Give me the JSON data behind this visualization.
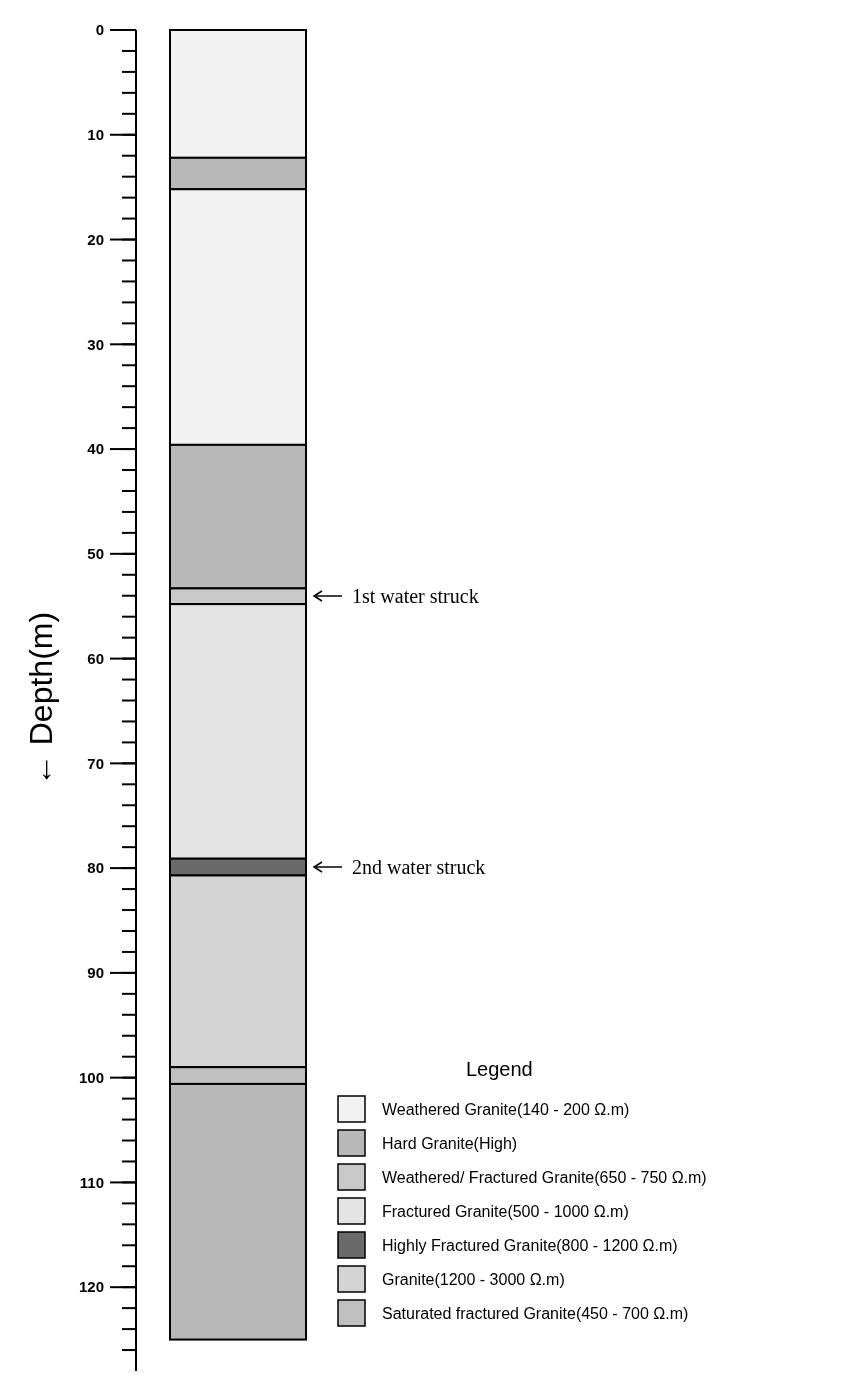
{
  "chart_data": {
    "type": "bar",
    "stacked": true,
    "categories": [
      null
    ],
    "ylabel": "← Depth(m)",
    "ylim": [
      128,
      0
    ],
    "yticks": [
      0,
      10,
      20,
      30,
      40,
      50,
      60,
      70,
      80,
      90,
      100,
      110,
      120
    ],
    "tick_labels": "y",
    "legend": "bottom right",
    "legend_title": "Legend",
    "series": [
      {
        "name": "Weathered Granite(140 - 200 Ω.m)",
        "color": "#f2f2f2",
        "values": [
          12.2
        ]
      },
      {
        "name": "Hard Granite(High)",
        "color": "#b8b8b8",
        "values": [
          3
        ]
      },
      {
        "color": "#f2f2f2",
        "values": [
          24.4
        ]
      },
      {
        "color": "#b8b8b8",
        "values": [
          13.7
        ]
      },
      {
        "name": "Weathered/ Fractured Granite(650 - 750 Ω.m)",
        "color": "#c8c8c8",
        "values": [
          1.5
        ]
      },
      {
        "name": "Fractured Granite(500 - 1000 Ω.m)",
        "color": "#e4e4e4",
        "values": [
          24.3
        ]
      },
      {
        "name": "Highly Fractured Granite(800 - 1200 Ω.m)",
        "color": "#6a6a6a",
        "values": [
          1.6
        ]
      },
      {
        "name": "Granite(1200 - 3000 Ω.m)",
        "color": "#d4d4d4",
        "values": [
          18.3
        ]
      },
      {
        "name": "Saturated fractured Granite(450 - 700 Ω.m)",
        "color": "#c0c0c0",
        "values": [
          1.6
        ]
      },
      {
        "color": "#b8b8b8",
        "values": [
          24.4
        ]
      }
    ],
    "annotations": [
      "1st water struck",
      "2nd water struck"
    ]
  }
}
